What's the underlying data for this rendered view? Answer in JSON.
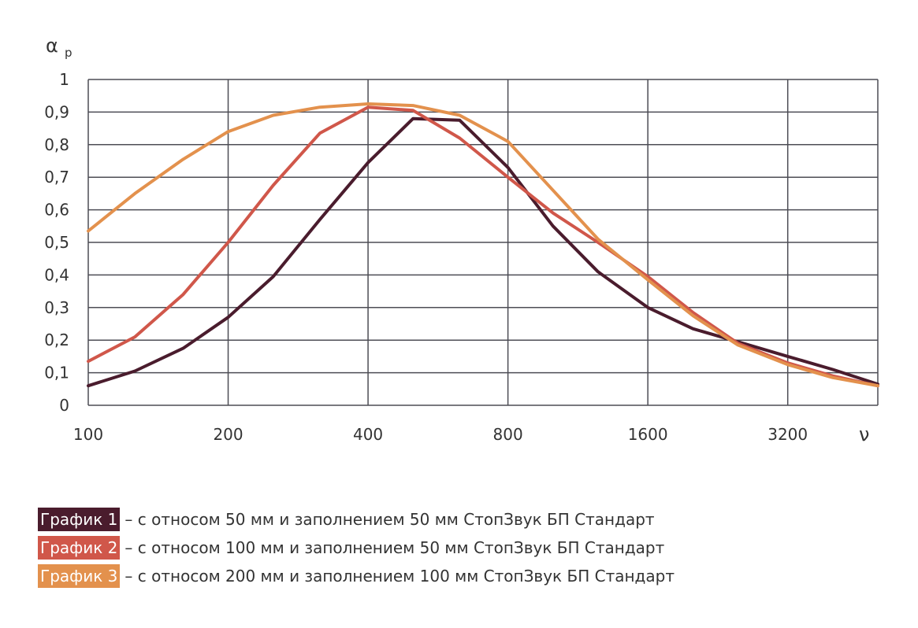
{
  "chart_data": {
    "type": "line",
    "ylabel": "α",
    "ylabel_sub": "р",
    "xlabel": "ν",
    "x_scale": "log2",
    "x": [
      100,
      126,
      160,
      200,
      250,
      315,
      400,
      500,
      630,
      800,
      1000,
      1250,
      1600,
      2000,
      2500,
      3200,
      4000,
      5000
    ],
    "x_ticks": [
      100,
      200,
      400,
      800,
      1600,
      3200
    ],
    "x_tick_labels": [
      "100",
      "200",
      "400",
      "800",
      "1600",
      "3200"
    ],
    "xlim": [
      100,
      5000
    ],
    "ylim": [
      0,
      1
    ],
    "y_ticks": [
      0,
      0.1,
      0.2,
      0.3,
      0.4,
      0.5,
      0.6,
      0.7,
      0.8,
      0.9,
      1
    ],
    "y_tick_labels": [
      "0",
      "0,1",
      "0,2",
      "0,3",
      "0,4",
      "0,5",
      "0,6",
      "0,7",
      "0,8",
      "0,9",
      "1"
    ],
    "grid": true,
    "series": [
      {
        "name": "График 1",
        "color": "#4a1c2d",
        "values": [
          0.06,
          0.105,
          0.175,
          0.27,
          0.395,
          0.57,
          0.745,
          0.88,
          0.875,
          0.73,
          0.55,
          0.41,
          0.3,
          0.235,
          0.195,
          0.15,
          0.11,
          0.065
        ]
      },
      {
        "name": "График 2",
        "color": "#d0574a",
        "values": [
          0.135,
          0.21,
          0.34,
          0.5,
          0.675,
          0.835,
          0.915,
          0.905,
          0.82,
          0.7,
          0.59,
          0.5,
          0.395,
          0.285,
          0.19,
          0.13,
          0.09,
          0.06
        ]
      },
      {
        "name": "График 3",
        "color": "#e3914d",
        "values": [
          0.535,
          0.65,
          0.755,
          0.84,
          0.89,
          0.915,
          0.925,
          0.92,
          0.89,
          0.81,
          0.66,
          0.51,
          0.385,
          0.275,
          0.185,
          0.125,
          0.085,
          0.06
        ]
      }
    ]
  },
  "legend": [
    {
      "label": "График 1",
      "text": "– с относом 50 мм и заполнением 50 мм СтопЗвук БП Стандарт",
      "color": "#4a1c2d"
    },
    {
      "label": "График 2",
      "text": "– с относом 100 мм и заполнением 50 мм СтопЗвук БП Стандарт",
      "color": "#d0574a"
    },
    {
      "label": "График 3",
      "text": "– с относом 200 мм и заполнением 100 мм СтопЗвук БП Стандарт",
      "color": "#e3914d"
    }
  ]
}
